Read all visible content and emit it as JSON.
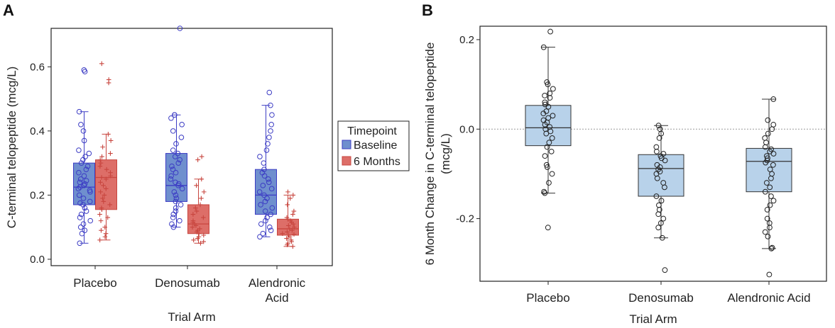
{
  "figure": {
    "panel_a_label": "A",
    "panel_b_label": "B"
  },
  "colors": {
    "baseline_fill": "#6f8fce",
    "baseline_line": "#3c3cc4",
    "months6_fill": "#dd6e68",
    "months6_line": "#c8463f",
    "boxB_fill": "#b8d2ea",
    "boxB_line": "#333333",
    "axis": "#222222"
  },
  "chart_data": [
    {
      "type": "boxplot",
      "title": "",
      "xlabel": "Trial Arm",
      "ylabel": "C-terminal telopeptide (mcg/L)",
      "ylim": [
        -0.02,
        0.72
      ],
      "yticks": [
        "0.0",
        "0.2",
        "0.4",
        "0.6"
      ],
      "yticks_values": [
        0.0,
        0.2,
        0.4,
        0.6
      ],
      "categories": [
        "Placebo",
        "Denosumab",
        "Alendronic\nAcid"
      ],
      "legend": {
        "title": "Timepoint",
        "position": "right",
        "entries": [
          "Baseline",
          "6 Months"
        ]
      },
      "series": [
        {
          "name": "Baseline",
          "marker": "circle",
          "boxes": [
            {
              "category": "Placebo",
              "q1": 0.17,
              "median": 0.225,
              "q3": 0.3,
              "whisker_low": 0.05,
              "whisker_high": 0.46,
              "points": [
                0.59,
                0.585,
                0.46,
                0.42,
                0.4,
                0.37,
                0.34,
                0.33,
                0.32,
                0.31,
                0.3,
                0.29,
                0.28,
                0.27,
                0.26,
                0.25,
                0.245,
                0.24,
                0.235,
                0.23,
                0.225,
                0.22,
                0.215,
                0.21,
                0.2,
                0.19,
                0.18,
                0.175,
                0.17,
                0.16,
                0.15,
                0.14,
                0.13,
                0.12,
                0.11,
                0.1,
                0.09,
                0.08,
                0.05
              ]
            },
            {
              "category": "Denosumab",
              "q1": 0.18,
              "median": 0.23,
              "q3": 0.33,
              "whisker_low": 0.1,
              "whisker_high": 0.45,
              "points": [
                0.72,
                0.45,
                0.45,
                0.44,
                0.42,
                0.4,
                0.38,
                0.36,
                0.34,
                0.33,
                0.32,
                0.31,
                0.3,
                0.29,
                0.28,
                0.27,
                0.26,
                0.25,
                0.24,
                0.235,
                0.23,
                0.22,
                0.21,
                0.2,
                0.19,
                0.18,
                0.17,
                0.16,
                0.15,
                0.14,
                0.13,
                0.12,
                0.11,
                0.1
              ]
            },
            {
              "category": "Alendronic\nAcid",
              "q1": 0.14,
              "median": 0.2,
              "q3": 0.28,
              "whisker_low": 0.07,
              "whisker_high": 0.48,
              "points": [
                0.52,
                0.48,
                0.45,
                0.42,
                0.4,
                0.38,
                0.36,
                0.34,
                0.32,
                0.3,
                0.28,
                0.27,
                0.26,
                0.25,
                0.24,
                0.23,
                0.22,
                0.21,
                0.2,
                0.19,
                0.18,
                0.17,
                0.16,
                0.15,
                0.14,
                0.13,
                0.12,
                0.11,
                0.1,
                0.09,
                0.08,
                0.07
              ]
            }
          ]
        },
        {
          "name": "6 Months",
          "marker": "plus",
          "boxes": [
            {
              "category": "Placebo",
              "q1": 0.155,
              "median": 0.255,
              "q3": 0.31,
              "whisker_low": 0.06,
              "whisker_high": 0.39,
              "points": [
                0.61,
                0.56,
                0.55,
                0.39,
                0.37,
                0.35,
                0.33,
                0.32,
                0.31,
                0.3,
                0.29,
                0.28,
                0.27,
                0.26,
                0.255,
                0.25,
                0.24,
                0.23,
                0.22,
                0.21,
                0.2,
                0.19,
                0.18,
                0.17,
                0.16,
                0.155,
                0.14,
                0.13,
                0.12,
                0.1,
                0.09,
                0.08,
                0.07,
                0.06
              ]
            },
            {
              "category": "Denosumab",
              "q1": 0.08,
              "median": 0.11,
              "q3": 0.17,
              "whisker_low": 0.05,
              "whisker_high": 0.25,
              "points": [
                0.32,
                0.31,
                0.25,
                0.23,
                0.21,
                0.19,
                0.17,
                0.16,
                0.15,
                0.14,
                0.13,
                0.12,
                0.115,
                0.11,
                0.105,
                0.1,
                0.095,
                0.09,
                0.085,
                0.08,
                0.075,
                0.07,
                0.065,
                0.06,
                0.055,
                0.05
              ]
            },
            {
              "category": "Alendronic\nAcid",
              "q1": 0.075,
              "median": 0.095,
              "q3": 0.125,
              "whisker_low": 0.04,
              "whisker_high": 0.2,
              "points": [
                0.21,
                0.2,
                0.19,
                0.17,
                0.15,
                0.14,
                0.13,
                0.125,
                0.12,
                0.115,
                0.11,
                0.105,
                0.1,
                0.095,
                0.09,
                0.085,
                0.08,
                0.078,
                0.075,
                0.07,
                0.065,
                0.06,
                0.055,
                0.05,
                0.045,
                0.04
              ]
            }
          ]
        }
      ]
    },
    {
      "type": "boxplot",
      "title": "",
      "xlabel": "Trial Arm",
      "ylabel_lines": [
        "6 Month Change in C-terminal telopeptide",
        "(mcg/L)"
      ],
      "ylim": [
        -0.34,
        0.23
      ],
      "yticks": [
        "-0.2",
        "0.0",
        "0.2"
      ],
      "yticks_values": [
        -0.2,
        0.0,
        0.2
      ],
      "reference_line": 0.0,
      "categories": [
        "Placebo",
        "Denosumab",
        "Alendronic Acid"
      ],
      "boxes": [
        {
          "category": "Placebo",
          "q1": -0.037,
          "median": 0.003,
          "q3": 0.053,
          "whisker_low": -0.143,
          "whisker_high": 0.183,
          "points": [
            0.218,
            0.183,
            0.105,
            0.1,
            0.09,
            0.08,
            0.075,
            0.07,
            0.06,
            0.055,
            0.05,
            0.04,
            0.035,
            0.03,
            0.025,
            0.02,
            0.015,
            0.01,
            0.005,
            0.0,
            -0.005,
            -0.01,
            -0.02,
            -0.03,
            -0.04,
            -0.05,
            -0.06,
            -0.08,
            -0.085,
            -0.1,
            -0.12,
            -0.14,
            -0.143,
            -0.22
          ]
        },
        {
          "category": "Denosumab",
          "q1": -0.15,
          "median": -0.088,
          "q3": -0.057,
          "whisker_low": -0.243,
          "whisker_high": 0.008,
          "points": [
            0.008,
            0.0,
            -0.01,
            -0.02,
            -0.04,
            -0.05,
            -0.055,
            -0.06,
            -0.065,
            -0.07,
            -0.08,
            -0.085,
            -0.09,
            -0.095,
            -0.1,
            -0.11,
            -0.12,
            -0.13,
            -0.15,
            -0.16,
            -0.17,
            -0.18,
            -0.19,
            -0.2,
            -0.21,
            -0.22,
            -0.243,
            -0.315
          ]
        },
        {
          "category": "Alendronic Acid",
          "q1": -0.14,
          "median": -0.072,
          "q3": -0.043,
          "whisker_low": -0.267,
          "whisker_high": 0.067,
          "points": [
            0.067,
            0.02,
            0.01,
            0.0,
            -0.01,
            -0.02,
            -0.03,
            -0.04,
            -0.045,
            -0.05,
            -0.055,
            -0.06,
            -0.065,
            -0.07,
            -0.075,
            -0.08,
            -0.09,
            -0.1,
            -0.11,
            -0.12,
            -0.13,
            -0.14,
            -0.15,
            -0.16,
            -0.17,
            -0.18,
            -0.2,
            -0.21,
            -0.22,
            -0.23,
            -0.24,
            -0.265,
            -0.267,
            -0.325
          ]
        }
      ]
    }
  ]
}
